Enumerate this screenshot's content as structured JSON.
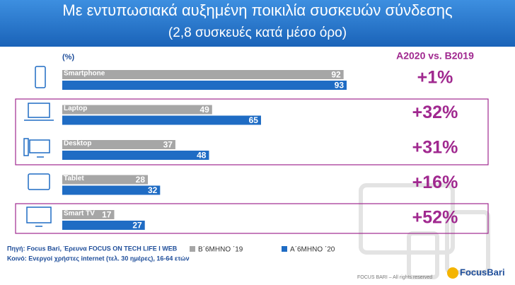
{
  "chart_data": {
    "type": "bar",
    "orientation": "horizontal",
    "title": "Με εντυπωσιακά αυξημένη ποικιλία συσκευών σύνδεσης",
    "subtitle": "(2,8 συσκευές κατά μέσο όρο)",
    "unit_label": "(%)",
    "categories": [
      "Smartphone",
      "Laptop",
      "Desktop",
      "Tablet",
      "Smart TV"
    ],
    "series": [
      {
        "name": "B΄6ΜΗΝΟ ΄19",
        "color": "#a6a6a6",
        "values": [
          92,
          49,
          37,
          28,
          17
        ]
      },
      {
        "name": "A΄6ΜΗΝΟ ΄20",
        "color": "#1f6cc4",
        "values": [
          93,
          65,
          48,
          32,
          27
        ]
      }
    ],
    "change_header": "A2020 vs. B2019",
    "changes": [
      "+1%",
      "+32%",
      "+31%",
      "+16%",
      "+52%"
    ],
    "source": "Πηγή: Focus Bari, Έρευνα FOCUS ON TECH LIFE I WEB",
    "population": "Κοινό: Ενεργοί χρήστες internet (τελ. 30 ημέρες), 16-64 ετών",
    "footer": "FOCUS BARI – All rights reserved",
    "logo": "FocusBari"
  }
}
